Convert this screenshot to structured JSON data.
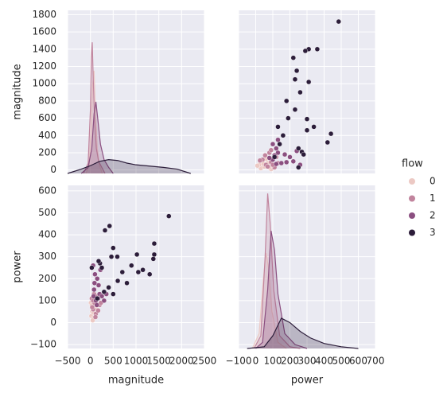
{
  "chart_data": [
    {
      "type": "kde",
      "ylabel": "magnitude",
      "xlim": [
        -500,
        2500
      ],
      "ylim": [
        -40,
        1850
      ],
      "xticks": [
        {
          "value": -500,
          "label": "−500"
        },
        0,
        500,
        1000,
        1500,
        2000,
        2500
      ],
      "yticks": [
        0,
        200,
        400,
        600,
        800,
        1000,
        1200,
        1400,
        1600,
        1800
      ],
      "series": [
        {
          "color": "#ecc9c4",
          "x": [
            -100,
            -30,
            20,
            50,
            80,
            110,
            150,
            200,
            260
          ],
          "values": [
            -40,
            50,
            500,
            1000,
            1150,
            700,
            250,
            50,
            -40
          ]
        },
        {
          "color": "#c1849d",
          "x": [
            -150,
            -50,
            0,
            20,
            40,
            60,
            90,
            130,
            180,
            250,
            320
          ],
          "values": [
            -40,
            80,
            700,
            1300,
            1480,
            1100,
            600,
            250,
            100,
            30,
            -40
          ]
        },
        {
          "color": "#8b4f80",
          "x": [
            -200,
            -50,
            30,
            80,
            120,
            160,
            220,
            300,
            400,
            500
          ],
          "values": [
            -40,
            30,
            250,
            650,
            790,
            600,
            300,
            120,
            30,
            -40
          ]
        },
        {
          "color": "#2c1d3a",
          "x": [
            -500,
            -200,
            0,
            200,
            400,
            600,
            800,
            1000,
            1300,
            1600,
            1900,
            2200
          ],
          "values": [
            -40,
            10,
            50,
            100,
            120,
            110,
            80,
            60,
            45,
            30,
            10,
            -40
          ]
        }
      ]
    },
    {
      "type": "scatter",
      "legend_title": "flow",
      "legend": "right",
      "xlim": [
        -100,
        700
      ],
      "ylim": [
        -40,
        1850
      ],
      "xticks": [
        {
          "value": -100,
          "label": "−100"
        },
        0,
        100,
        200,
        300,
        400,
        500,
        600,
        700
      ],
      "yticks": [
        0,
        200,
        400,
        600,
        800,
        1000,
        1200,
        1400,
        1600,
        1800
      ],
      "series": [
        {
          "name": "0",
          "color": "#ecc9c4",
          "x": [
            30,
            50,
            20,
            70,
            90,
            40,
            10,
            60,
            80,
            45
          ],
          "values": [
            20,
            40,
            60,
            80,
            10,
            100,
            50,
            130,
            30,
            70
          ]
        },
        {
          "name": "1",
          "color": "#c1849d",
          "x": [
            110,
            60,
            90,
            40,
            120,
            70,
            80,
            130,
            25,
            55,
            100,
            90
          ],
          "values": [
            30,
            60,
            90,
            120,
            150,
            40,
            200,
            80,
            110,
            170,
            60,
            230
          ]
        },
        {
          "name": "2",
          "color": "#8b4f80",
          "x": [
            150,
            100,
            200,
            130,
            260,
            220,
            120,
            170,
            100,
            180,
            80,
            240,
            130,
            120,
            110
          ],
          "values": [
            80,
            120,
            150,
            200,
            60,
            100,
            250,
            180,
            300,
            90,
            140,
            220,
            350,
            70,
            170
          ]
        },
        {
          "name": "3",
          "color": "#2c1d3a",
          "x": [
            485,
            440,
            420,
            360,
            310,
            310,
            290,
            240,
            340,
            300,
            300,
            270,
            280,
            250,
            230,
            260,
            230,
            220,
            190,
            160,
            140,
            180,
            130,
            110,
            250
          ],
          "values": [
            1720,
            420,
            320,
            1400,
            1400,
            1020,
            1380,
            1150,
            500,
            590,
            460,
            210,
            180,
            250,
            700,
            900,
            1050,
            1300,
            600,
            400,
            300,
            800,
            500,
            150,
            30
          ]
        }
      ]
    },
    {
      "type": "scatter",
      "xlabel": "magnitude",
      "ylabel": "power",
      "xlim": [
        -500,
        2500
      ],
      "ylim": [
        -118,
        625
      ],
      "xticks": [
        {
          "value": -500,
          "label": "−500"
        },
        0,
        500,
        1000,
        1500,
        2000,
        2500
      ],
      "yticks": [
        {
          "value": -100,
          "label": "−100"
        },
        0,
        100,
        200,
        300,
        400,
        500,
        600
      ],
      "series": [
        {
          "color": "#ecc9c4",
          "x": [
            20,
            40,
            60,
            80,
            10,
            100,
            50,
            130,
            30,
            70
          ],
          "values": [
            30,
            50,
            20,
            70,
            90,
            40,
            10,
            60,
            80,
            45
          ]
        },
        {
          "color": "#c1849d",
          "x": [
            30,
            60,
            90,
            120,
            150,
            40,
            200,
            80,
            110,
            170,
            60,
            230
          ],
          "values": [
            110,
            60,
            90,
            40,
            120,
            70,
            80,
            130,
            25,
            55,
            100,
            90
          ]
        },
        {
          "color": "#8b4f80",
          "x": [
            80,
            120,
            150,
            200,
            60,
            100,
            250,
            180,
            300,
            90,
            140,
            220,
            350,
            70,
            170
          ],
          "values": [
            150,
            100,
            200,
            130,
            260,
            220,
            120,
            170,
            100,
            180,
            80,
            240,
            130,
            120,
            110
          ]
        },
        {
          "color": "#2c1d3a",
          "x": [
            1720,
            420,
            320,
            1400,
            1400,
            1020,
            1380,
            1150,
            500,
            590,
            460,
            210,
            180,
            250,
            700,
            900,
            1050,
            1300,
            600,
            400,
            300,
            800,
            500,
            150,
            30
          ],
          "values": [
            485,
            440,
            420,
            360,
            310,
            310,
            290,
            240,
            340,
            300,
            300,
            270,
            280,
            250,
            230,
            260,
            230,
            220,
            190,
            160,
            140,
            180,
            130,
            110,
            250
          ]
        }
      ]
    },
    {
      "type": "kde",
      "xlabel": "power",
      "xlim": [
        -100,
        700
      ],
      "ylim": [
        -118,
        625
      ],
      "xticks": [
        {
          "value": -100,
          "label": "−100"
        },
        0,
        100,
        200,
        300,
        400,
        500,
        600,
        700
      ],
      "yticks": [
        {
          "value": -100,
          "label": "−100"
        },
        0,
        100,
        200,
        300,
        400,
        500,
        600
      ],
      "series": [
        {
          "color": "#ecc9c4",
          "x": [
            -20,
            20,
            45,
            60,
            75,
            95,
            130,
            180
          ],
          "values": [
            -118,
            -50,
            200,
            317,
            250,
            50,
            -90,
            -118
          ]
        },
        {
          "color": "#c1849d",
          "x": [
            -10,
            30,
            55,
            70,
            85,
            105,
            140,
            200,
            260
          ],
          "values": [
            -118,
            -60,
            300,
            588,
            450,
            150,
            -60,
            -110,
            -118
          ]
        },
        {
          "color": "#8b4f80",
          "x": [
            0,
            40,
            70,
            90,
            110,
            130,
            170,
            230,
            300
          ],
          "values": [
            -118,
            -90,
            150,
            418,
            330,
            130,
            -50,
            -100,
            -118
          ]
        },
        {
          "color": "#2c1d3a",
          "x": [
            -50,
            50,
            100,
            150,
            200,
            260,
            320,
            400,
            500,
            600
          ],
          "values": [
            -118,
            -110,
            -60,
            20,
            0,
            -40,
            -70,
            -95,
            -110,
            -118
          ]
        }
      ]
    }
  ]
}
